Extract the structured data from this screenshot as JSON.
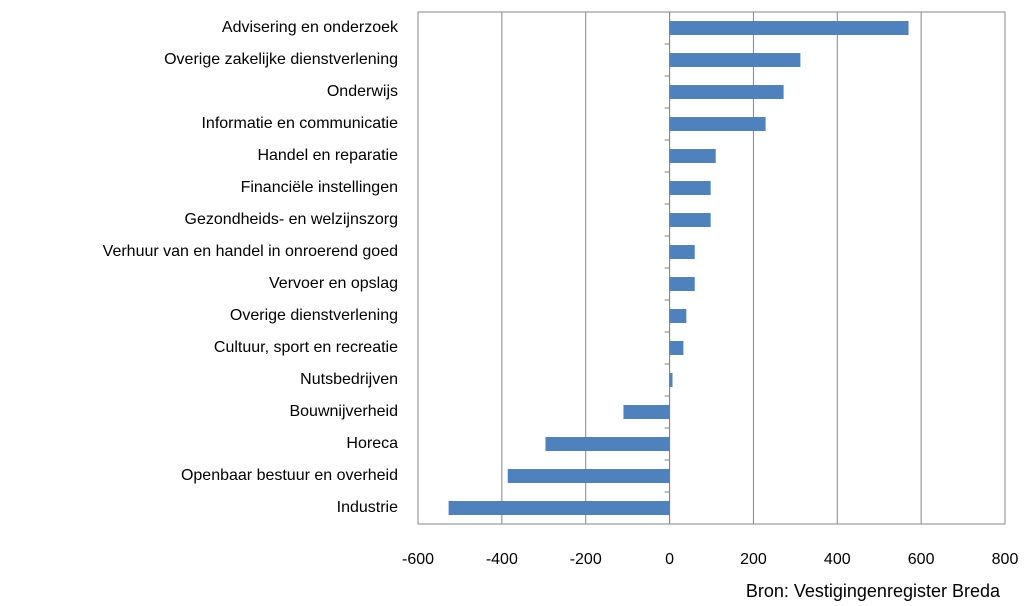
{
  "chart_data": {
    "type": "barh",
    "categories": [
      "Advisering en onderzoek",
      "Overige zakelijke dienstverlening",
      "Onderwijs",
      "Informatie en communicatie",
      "Handel en reparatie",
      "Financiële instellingen",
      "Gezondheids- en welzijnszorg",
      "Verhuur van en handel in onroerend goed",
      "Vervoer en opslag",
      "Overige dienstverlening",
      "Cultuur, sport en recreatie",
      "Nutsbedrijven",
      "Bouwnijverheid",
      "Horeca",
      "Openbaar bestuur en overheid",
      "Industrie"
    ],
    "values": [
      570,
      312,
      272,
      229,
      110,
      98,
      98,
      60,
      60,
      40,
      33,
      7,
      -110,
      -296,
      -386,
      -527
    ],
    "color": "#4f81bd",
    "xlim": [
      -600,
      800
    ],
    "xticks": [
      -600,
      -400,
      -200,
      0,
      200,
      400,
      600,
      800
    ],
    "grid": true,
    "source": "Bron: Vestigingenregister Breda"
  }
}
